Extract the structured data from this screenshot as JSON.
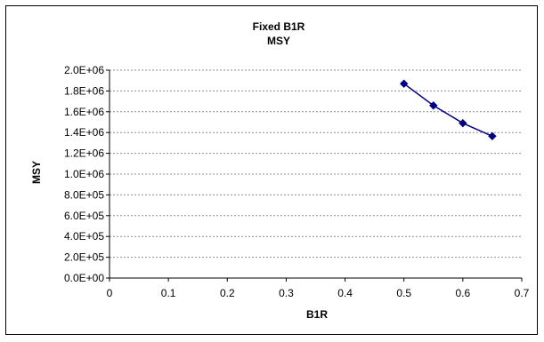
{
  "chart_data": {
    "type": "scatter",
    "title": [
      "Fixed B1R",
      "MSY"
    ],
    "xlabel": "B1R",
    "ylabel": "MSY",
    "xlim": [
      0,
      0.7
    ],
    "ylim": [
      0,
      2000000
    ],
    "x_ticks": [
      "0",
      "0.1",
      "0.2",
      "0.3",
      "0.4",
      "0.5",
      "0.6",
      "0.7"
    ],
    "y_ticks": [
      "0.0E+00",
      "2.0E+05",
      "4.0E+05",
      "6.0E+05",
      "8.0E+05",
      "1.0E+06",
      "1.2E+06",
      "1.4E+06",
      "1.6E+06",
      "1.8E+06",
      "2.0E+06"
    ],
    "grid": "horizontal",
    "legend": "none",
    "series": [
      {
        "color": "#000080",
        "marker": "diamond",
        "points": [
          {
            "x": 0.5,
            "y": 1870000
          },
          {
            "x": 0.55,
            "y": 1660000
          },
          {
            "x": 0.6,
            "y": 1490000
          },
          {
            "x": 0.65,
            "y": 1365000
          }
        ]
      }
    ]
  }
}
